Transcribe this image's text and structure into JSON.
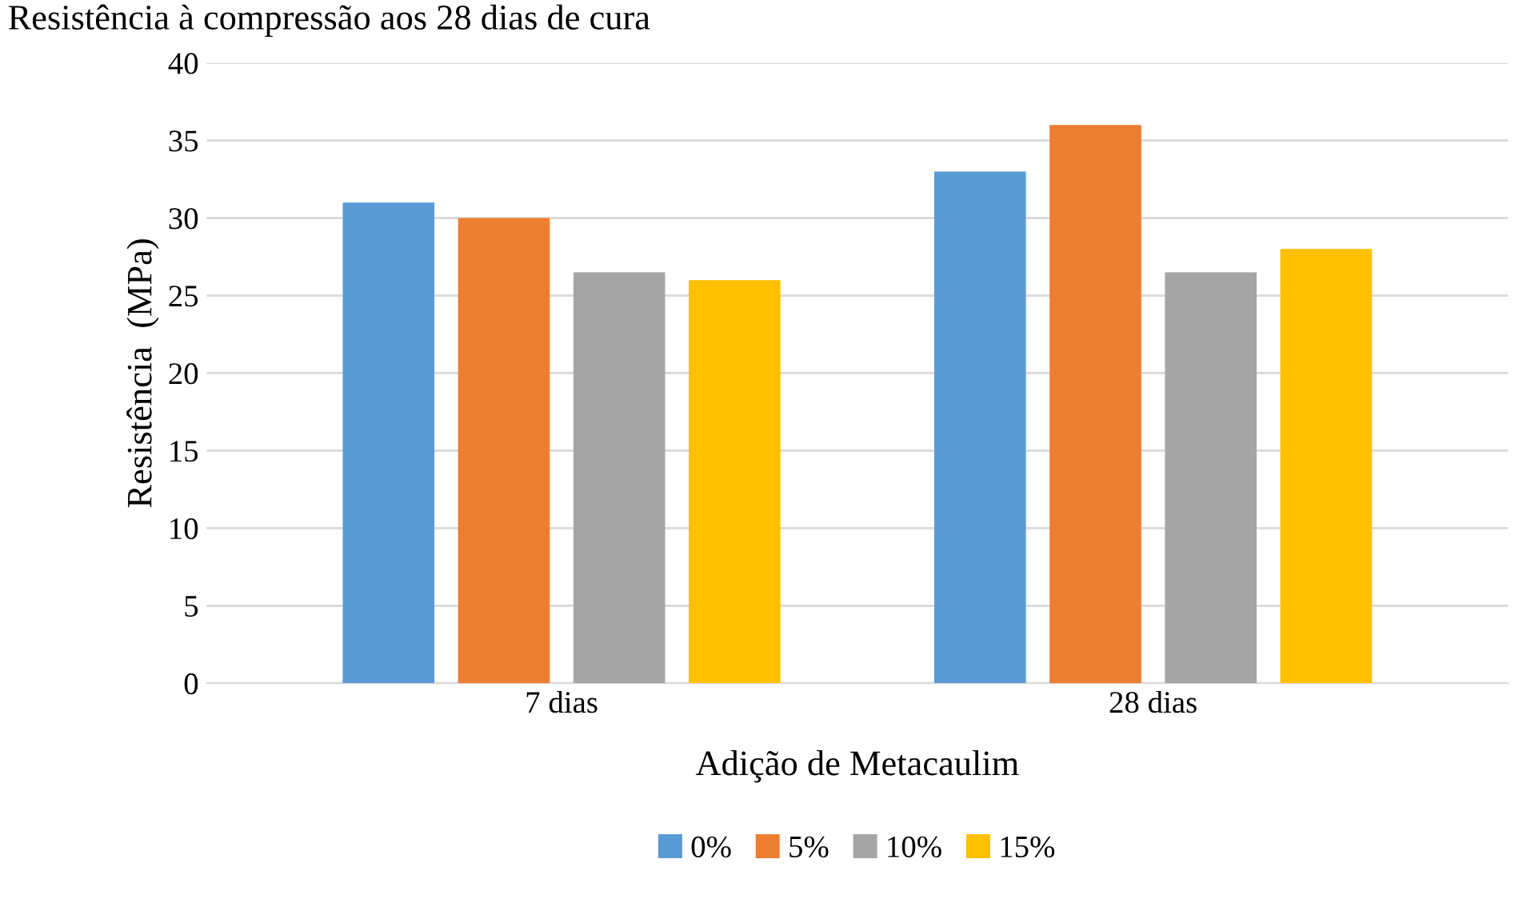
{
  "chart_data": {
    "type": "bar",
    "title": "Resistência à compressão aos 28 dias de cura",
    "xlabel": "Adição de Metacaulim",
    "ylabel": "Resistência  (MPa)",
    "categories": [
      "7 dias",
      "28 dias"
    ],
    "series": [
      {
        "name": "0%",
        "color": "#5b9bd5",
        "values": [
          31,
          33
        ]
      },
      {
        "name": "5%",
        "color": "#ed7d31",
        "values": [
          30,
          36
        ]
      },
      {
        "name": "10%",
        "color": "#a5a5a5",
        "values": [
          26.5,
          26.5
        ]
      },
      {
        "name": "15%",
        "color": "#ffc000",
        "values": [
          26,
          28
        ]
      }
    ],
    "ylim": [
      0,
      40
    ],
    "yticks": [
      0,
      5,
      10,
      15,
      20,
      25,
      30,
      35,
      40
    ],
    "grid": "y",
    "legend": "bottom"
  }
}
